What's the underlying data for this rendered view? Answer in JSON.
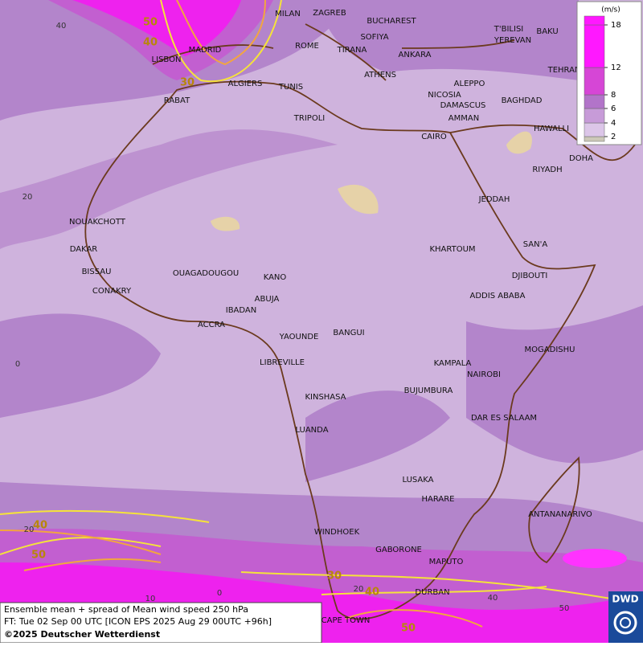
{
  "map": {
    "cities": [
      "MILAN",
      "ZAGREB",
      "BUCHAREST",
      "MADRID",
      "ROME",
      "SOFIYA",
      "T'BILISI",
      "BAKU",
      "YEREVAN",
      "LISBON",
      "TIRANA",
      "ANKARA",
      "TEHRAN",
      "ALGIERS",
      "TUNIS",
      "ATHENS",
      "ALEPPO",
      "NICOSIA",
      "BAGHDAD",
      "RABAT",
      "DAMASCUS",
      "AMMAN",
      "TRIPOLI",
      "HAWALLI",
      "CAIRO",
      "DOHA",
      "RIYADH",
      "JEDDAH",
      "NOUAKCHOTT",
      "SAN'A",
      "DAKAR",
      "KHARTOUM",
      "BISSAU",
      "DJIBOUTI",
      "OUAGADOUGOU",
      "KANO",
      "CONAKRY",
      "ABUJA",
      "ADDIS ABABA",
      "IBADAN",
      "ACCRA",
      "BANGUI",
      "YAOUNDE",
      "MOGADISHU",
      "LIBREVILLE",
      "KAMPALA",
      "NAIROBI",
      "BUJUMBURA",
      "KINSHASA",
      "DAR ES SALAAM",
      "LUANDA",
      "LUSAKA",
      "HARARE",
      "ANTANANARIVO",
      "WINDHOEK",
      "GABORONE",
      "MAPUTO",
      "DURBAN",
      "CAPE TOWN"
    ],
    "contour_labels": [
      50,
      40,
      30,
      40,
      50,
      30,
      40,
      50
    ],
    "grid_labels": [
      40,
      20,
      0,
      20,
      10,
      0,
      20,
      40,
      50
    ],
    "legend": {
      "unit": "(m/s)",
      "ticks": [
        2,
        4,
        6,
        8,
        12,
        18
      ]
    }
  },
  "footer": {
    "lines": [
      "Ensemble mean + spread of Mean wind speed 250 hPa",
      "FT: Tue 02 Sep 00 UTC [ICON EPS 2025 Aug 29 00UTC +96h]",
      "©2025 Deutscher Wetterdienst"
    ]
  },
  "logo": "DWD"
}
